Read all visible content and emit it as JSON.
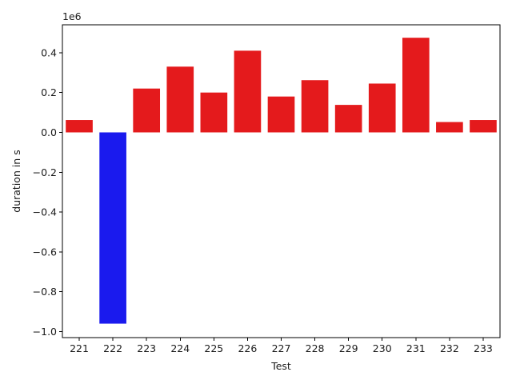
{
  "chart_data": {
    "type": "bar",
    "categories": [
      "221",
      "222",
      "223",
      "224",
      "225",
      "226",
      "227",
      "228",
      "229",
      "230",
      "231",
      "232",
      "233"
    ],
    "values": [
      62000,
      -960000,
      220000,
      330000,
      200000,
      410000,
      180000,
      262000,
      138000,
      245000,
      475000,
      52000,
      62000
    ],
    "bar_colors": [
      "#e41a1c",
      "#1a1aee",
      "#e41a1c",
      "#e41a1c",
      "#e41a1c",
      "#e41a1c",
      "#e41a1c",
      "#e41a1c",
      "#e41a1c",
      "#e41a1c",
      "#e41a1c",
      "#e41a1c",
      "#e41a1c"
    ],
    "xlabel": "Test",
    "ylabel": "duration in s",
    "offset_label": "1e6",
    "ylim": [
      -1030000,
      540000
    ],
    "y_ticks": [
      -1000000,
      -800000,
      -600000,
      -400000,
      -200000,
      0,
      200000,
      400000
    ],
    "y_tick_labels": [
      "−1.0",
      "−0.8",
      "−0.6",
      "−0.4",
      "−0.2",
      "0.0",
      "0.2",
      "0.4"
    ],
    "grid": false,
    "legend": "none"
  }
}
